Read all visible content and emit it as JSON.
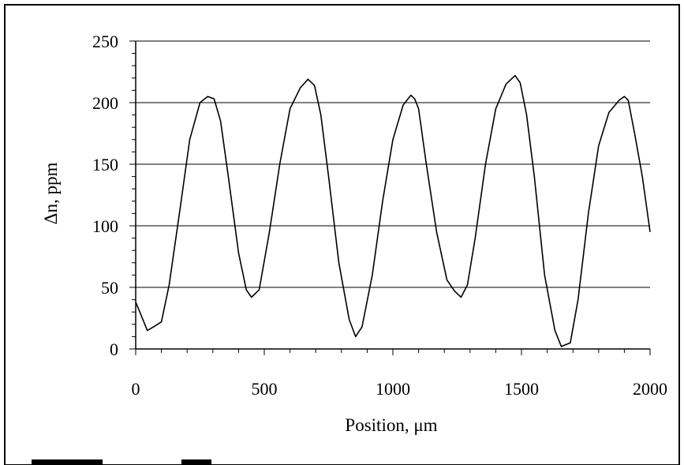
{
  "chart_data": {
    "type": "line",
    "title": "",
    "xlabel": "Position, μm",
    "ylabel": "Δn, ppm",
    "xlim": [
      0,
      2000
    ],
    "ylim": [
      0,
      250
    ],
    "grid": "horizontal",
    "legend": "none",
    "x_ticks": [
      0,
      500,
      1000,
      1500,
      2000
    ],
    "y_ticks": [
      0,
      50,
      100,
      150,
      200,
      250
    ],
    "x_tick_labels": [
      "0",
      "500",
      "1000",
      "1500",
      "2000"
    ],
    "y_tick_labels": [
      "0",
      "50",
      "100",
      "150",
      "200",
      "250"
    ],
    "series": [
      {
        "color": "#000000",
        "x": [
          0,
          20,
          45,
          70,
          100,
          130,
          170,
          210,
          250,
          280,
          305,
          330,
          360,
          400,
          430,
          450,
          480,
          520,
          560,
          600,
          640,
          670,
          695,
          720,
          750,
          790,
          830,
          855,
          880,
          920,
          960,
          1000,
          1040,
          1070,
          1085,
          1100,
          1130,
          1170,
          1210,
          1240,
          1265,
          1290,
          1320,
          1360,
          1400,
          1440,
          1475,
          1495,
          1520,
          1550,
          1590,
          1630,
          1655,
          1690,
          1720,
          1760,
          1800,
          1840,
          1880,
          1900,
          1915,
          1940,
          1970,
          2000
        ],
        "y": [
          38,
          28,
          15,
          18,
          22,
          52,
          110,
          170,
          200,
          205,
          203,
          185,
          140,
          78,
          48,
          42,
          48,
          95,
          150,
          195,
          212,
          219,
          214,
          190,
          140,
          70,
          24,
          10,
          18,
          60,
          120,
          170,
          198,
          206,
          203,
          195,
          150,
          95,
          56,
          47,
          42,
          52,
          90,
          150,
          195,
          215,
          222,
          216,
          190,
          140,
          60,
          15,
          2,
          5,
          40,
          110,
          165,
          192,
          202,
          205,
          202,
          175,
          140,
          95
        ]
      }
    ]
  }
}
